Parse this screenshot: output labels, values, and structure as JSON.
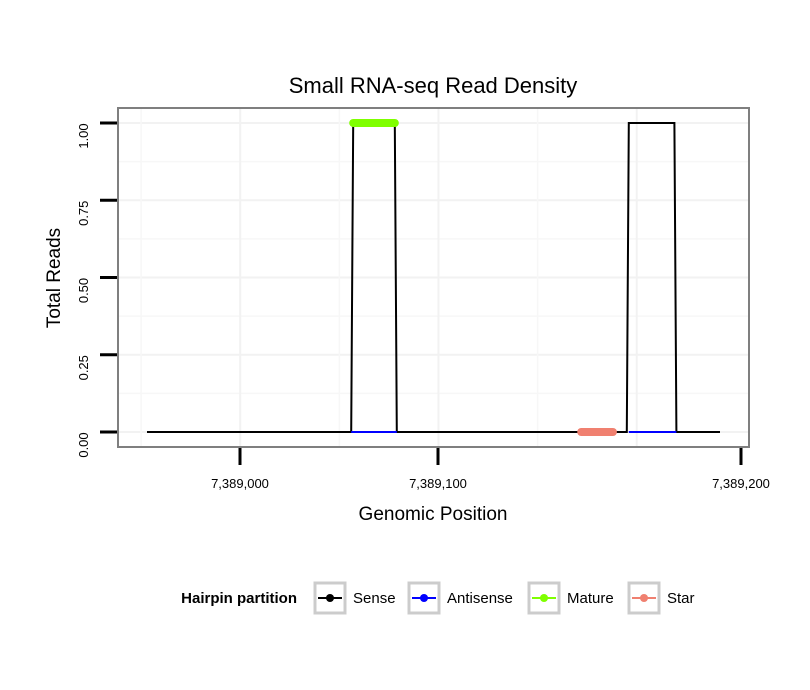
{
  "chart_data": {
    "type": "line",
    "title": "Small RNA-seq Read Density",
    "xlabel": "Genomic Position",
    "ylabel": "Total Reads",
    "xlim": [
      7388941,
      7389210
    ],
    "ylim": [
      -0.05,
      1.05
    ],
    "x_ticks": [
      {
        "value": 7389000,
        "label": "7,389,000"
      },
      {
        "value": 7389100,
        "label": "7,389,100"
      },
      {
        "value": 7389200,
        "label": "7,389,200"
      }
    ],
    "y_ticks": [
      {
        "value": 0,
        "label": "0.00"
      },
      {
        "value": 0.25,
        "label": "0.25"
      },
      {
        "value": 0.5,
        "label": "0.50"
      },
      {
        "value": 0.75,
        "label": "0.75"
      },
      {
        "value": 1.0,
        "label": "1.00"
      }
    ],
    "grid": true,
    "legend": {
      "title": "Hairpin partition",
      "position": "bottom",
      "entries": [
        {
          "name": "Sense",
          "color": "#000000"
        },
        {
          "name": "Antisense",
          "color": "#0000ff"
        },
        {
          "name": "Mature",
          "color": "#7fff00"
        },
        {
          "name": "Star",
          "color": "#f08070"
        }
      ]
    },
    "series": [
      {
        "name": "Sense",
        "color": "#000000",
        "x": [
          7388953,
          7389056,
          7389057,
          7389078,
          7389079,
          7389195,
          7389196,
          7389219,
          7389220,
          7389242
        ],
        "y": [
          0,
          0,
          1,
          1,
          0,
          0,
          1,
          1,
          0,
          0
        ]
      },
      {
        "name": "Antisense",
        "color": "#0000ff",
        "x": [
          7389056,
          7389079,
          7389196,
          7389220
        ],
        "y": [
          0,
          0,
          0,
          0
        ],
        "segments": [
          [
            0,
            1
          ],
          [
            2,
            3
          ]
        ]
      },
      {
        "name": "Mature",
        "color": "#7fff00",
        "x": [
          7389057,
          7389078
        ],
        "y": [
          1,
          1
        ]
      },
      {
        "name": "Star",
        "color": "#f08070",
        "x": [
          7389172,
          7389188
        ],
        "y": [
          0,
          0
        ]
      }
    ]
  }
}
